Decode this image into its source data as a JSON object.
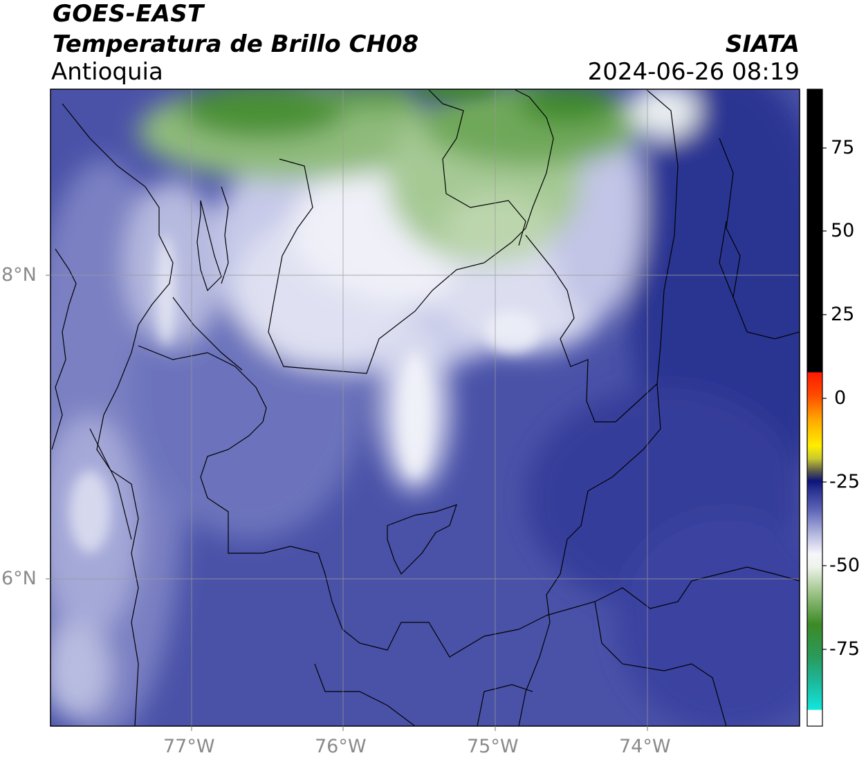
{
  "header": {
    "satellite": "GOES-EAST",
    "product": "Temperatura de Brillo CH08",
    "region": "Antioquia",
    "org": "SIATA",
    "datetime": "2024-06-26 08:19"
  },
  "axes": {
    "lat_labels": [
      "8°N",
      "6°N"
    ],
    "lon_labels": [
      "77°W",
      "76°W",
      "75°W",
      "74°W"
    ]
  },
  "colorbar": {
    "ticks": [
      "75",
      "50",
      "25",
      "0",
      "-25",
      "-50",
      "-75"
    ],
    "range": [
      -95,
      90
    ]
  },
  "colors": {
    "deep_blue": "#2a3390",
    "mid_blue": "#4a52a8",
    "light_blue": "#8c92cc",
    "white": "#f4f5fa",
    "light_green": "#b9d3a8",
    "dark_green": "#3f8a2a"
  }
}
